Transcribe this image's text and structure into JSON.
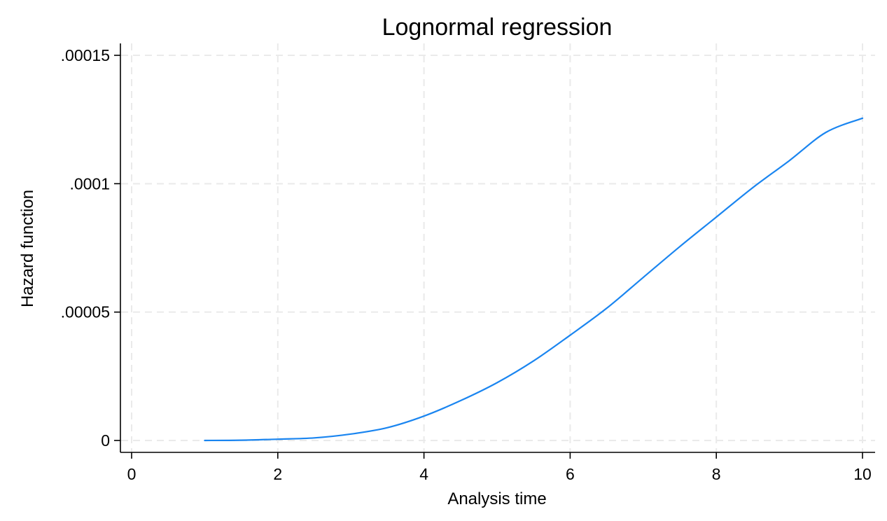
{
  "chart_data": {
    "type": "line",
    "title": "Lognormal regression",
    "xlabel": "Analysis time",
    "ylabel": "Hazard function",
    "xlim": [
      0,
      10
    ],
    "ylim": [
      0,
      0.00015
    ],
    "x_ticks": [
      0,
      2,
      4,
      6,
      8,
      10
    ],
    "x_tick_labels": [
      "0",
      "2",
      "4",
      "6",
      "8",
      "10"
    ],
    "y_ticks": [
      0,
      5e-05,
      0.0001,
      0.00015
    ],
    "y_tick_labels": [
      "0",
      ".00005",
      ".0001",
      ".00015"
    ],
    "grid": true,
    "grid_style": "dashed",
    "series": [
      {
        "color": "#1a85f0",
        "x": [
          1,
          1.5,
          2,
          2.5,
          3,
          3.5,
          4,
          4.5,
          5,
          5.5,
          6,
          6.5,
          7,
          7.5,
          8,
          8.5,
          9,
          9.5,
          10
        ],
        "y": [
          0,
          1e-07,
          5e-07,
          1e-06,
          2.5e-06,
          5e-06,
          9.5e-06,
          1.55e-05,
          2.25e-05,
          3.1e-05,
          4.1e-05,
          5.15e-05,
          6.35e-05,
          7.55e-05,
          8.7e-05,
          9.85e-05,
          0.000109,
          0.00012,
          0.0001255
        ]
      }
    ]
  }
}
